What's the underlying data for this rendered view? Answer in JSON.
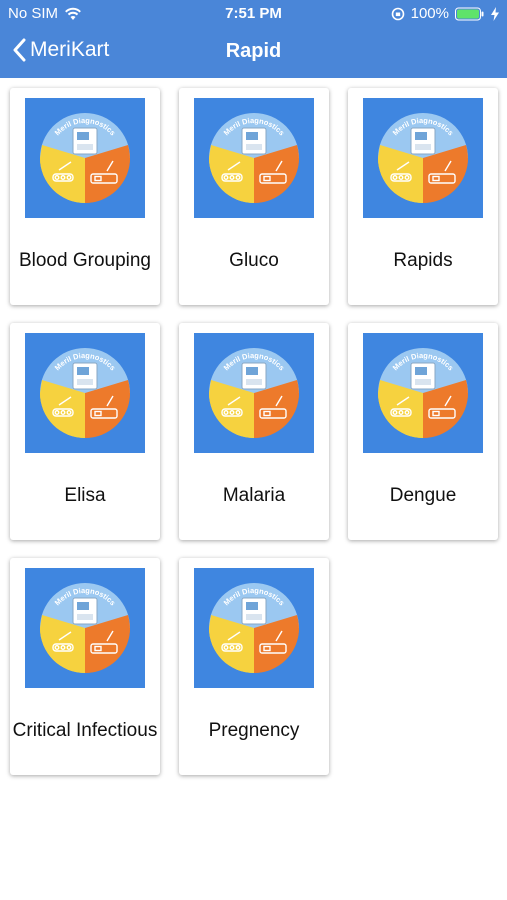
{
  "status": {
    "carrier": "No SIM",
    "time": "7:51 PM",
    "battery": "100%"
  },
  "nav": {
    "back_label": "MeriKart",
    "title": "Rapid"
  },
  "logo_text": "Meril Diagnostics",
  "colors": {
    "accent": "#4a86d8",
    "logo_bg": "#3f86e0",
    "logo_top": "#9bc8f1",
    "logo_left": "#f6d23f",
    "logo_right": "#ed7a2b"
  },
  "tiles": [
    {
      "label": "Blood Grouping"
    },
    {
      "label": "Gluco"
    },
    {
      "label": "Rapids"
    },
    {
      "label": "Elisa"
    },
    {
      "label": "Malaria"
    },
    {
      "label": "Dengue"
    },
    {
      "label": "Critical Infectious"
    },
    {
      "label": "Pregnency"
    }
  ]
}
